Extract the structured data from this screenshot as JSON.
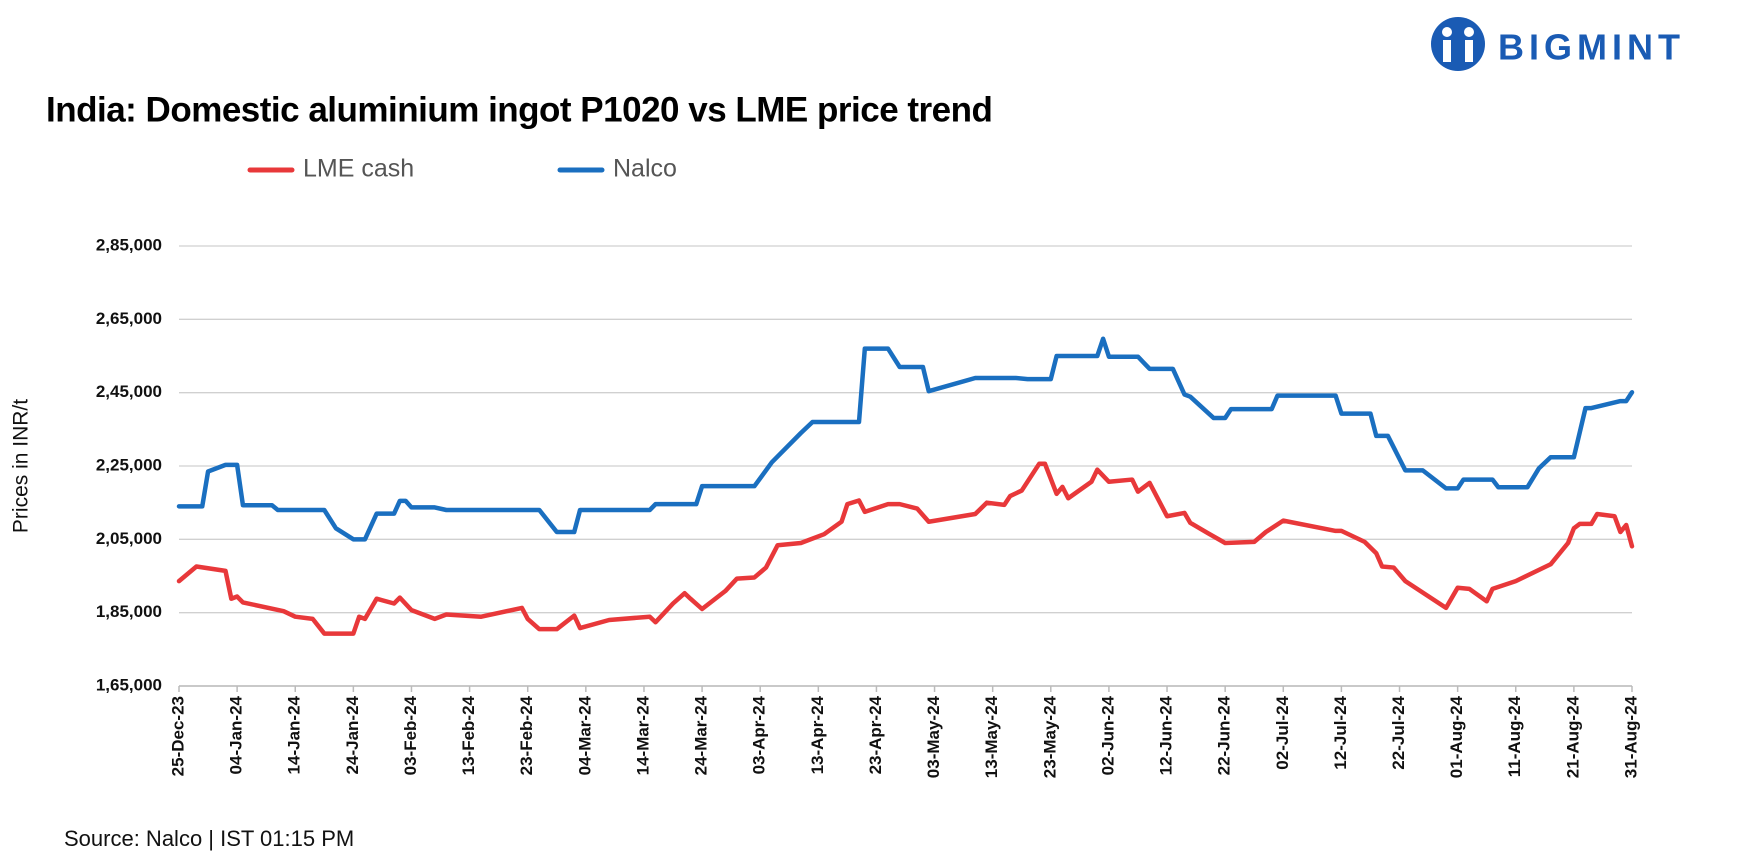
{
  "logo": "BIGMINT",
  "chart_data": {
    "type": "line",
    "title": "India: Domestic aluminium ingot P1020 vs LME price trend",
    "y_label": "Prices in INR/t",
    "source": "Source: Nalco | IST 01:15 PM",
    "xlim": [
      "2023-12-25",
      "2024-08-31"
    ],
    "xticks": [
      {
        "value": "2023-12-25",
        "label": "25-Dec-23"
      },
      {
        "value": "2024-01-04",
        "label": "04-Jan-24"
      },
      {
        "value": "2024-01-14",
        "label": "14-Jan-24"
      },
      {
        "value": "2024-01-24",
        "label": "24-Jan-24"
      },
      {
        "value": "2024-02-03",
        "label": "03-Feb-24"
      },
      {
        "value": "2024-02-13",
        "label": "13-Feb-24"
      },
      {
        "value": "2024-02-23",
        "label": "23-Feb-24"
      },
      {
        "value": "2024-03-04",
        "label": "04-Mar-24"
      },
      {
        "value": "2024-03-14",
        "label": "14-Mar-24"
      },
      {
        "value": "2024-03-24",
        "label": "24-Mar-24"
      },
      {
        "value": "2024-04-03",
        "label": "03-Apr-24"
      },
      {
        "value": "2024-04-13",
        "label": "13-Apr-24"
      },
      {
        "value": "2024-04-23",
        "label": "23-Apr-24"
      },
      {
        "value": "2024-05-03",
        "label": "03-May-24"
      },
      {
        "value": "2024-05-13",
        "label": "13-May-24"
      },
      {
        "value": "2024-05-23",
        "label": "23-May-24"
      },
      {
        "value": "2024-06-02",
        "label": "02-Jun-24"
      },
      {
        "value": "2024-06-12",
        "label": "12-Jun-24"
      },
      {
        "value": "2024-06-22",
        "label": "22-Jun-24"
      },
      {
        "value": "2024-07-02",
        "label": "02-Jul-24"
      },
      {
        "value": "2024-07-12",
        "label": "12-Jul-24"
      },
      {
        "value": "2024-07-22",
        "label": "22-Jul-24"
      },
      {
        "value": "2024-08-01",
        "label": "01-Aug-24"
      },
      {
        "value": "2024-08-11",
        "label": "11-Aug-24"
      },
      {
        "value": "2024-08-21",
        "label": "21-Aug-24"
      },
      {
        "value": "2024-08-31",
        "label": "31-Aug-24"
      }
    ],
    "ylim": [
      165000,
      285000
    ],
    "yticks": [
      {
        "value": 165000,
        "label": "1,65,000"
      },
      {
        "value": 185000,
        "label": "1,85,000"
      },
      {
        "value": 205000,
        "label": "2,05,000"
      },
      {
        "value": 225000,
        "label": "2,25,000"
      },
      {
        "value": 245000,
        "label": "2,45,000"
      },
      {
        "value": 265000,
        "label": "2,65,000"
      },
      {
        "value": 285000,
        "label": "2,85,000"
      }
    ],
    "grid": true,
    "series": [
      {
        "name": "LME cash",
        "color": "#e8383a",
        "x": [
          "2023-12-25",
          "2023-12-28",
          "2024-01-02",
          "2024-01-03",
          "2024-01-04",
          "2024-01-05",
          "2024-01-12",
          "2024-01-14",
          "2024-01-17",
          "2024-01-19",
          "2024-01-24",
          "2024-01-25",
          "2024-01-26",
          "2024-01-28",
          "2024-01-31",
          "2024-02-01",
          "2024-02-03",
          "2024-02-07",
          "2024-02-09",
          "2024-02-15",
          "2024-02-22",
          "2024-02-23",
          "2024-02-25",
          "2024-02-28",
          "2024-03-02",
          "2024-03-03",
          "2024-03-08",
          "2024-03-15",
          "2024-03-16",
          "2024-03-19",
          "2024-03-21",
          "2024-03-22",
          "2024-03-24",
          "2024-03-28",
          "2024-03-30",
          "2024-04-02",
          "2024-04-04",
          "2024-04-06",
          "2024-04-10",
          "2024-04-14",
          "2024-04-17",
          "2024-04-18",
          "2024-04-20",
          "2024-04-21",
          "2024-04-25",
          "2024-04-27",
          "2024-04-30",
          "2024-05-02",
          "2024-05-10",
          "2024-05-12",
          "2024-05-15",
          "2024-05-16",
          "2024-05-18",
          "2024-05-21",
          "2024-05-22",
          "2024-05-24",
          "2024-05-25",
          "2024-05-26",
          "2024-05-30",
          "2024-05-31",
          "2024-06-02",
          "2024-06-06",
          "2024-06-07",
          "2024-06-09",
          "2024-06-12",
          "2024-06-15",
          "2024-06-16",
          "2024-06-19",
          "2024-06-22",
          "2024-06-27",
          "2024-06-29",
          "2024-07-02",
          "2024-07-11",
          "2024-07-12",
          "2024-07-16",
          "2024-07-18",
          "2024-07-19",
          "2024-07-21",
          "2024-07-23",
          "2024-07-30",
          "2024-08-01",
          "2024-08-03",
          "2024-08-06",
          "2024-08-07",
          "2024-08-11",
          "2024-08-17",
          "2024-08-20",
          "2024-08-21",
          "2024-08-22",
          "2024-08-24",
          "2024-08-25",
          "2024-08-28",
          "2024-08-29",
          "2024-08-30",
          "2024-08-31"
        ],
        "values": [
          193600,
          197600,
          196400,
          188800,
          189400,
          187800,
          185400,
          183900,
          183300,
          179300,
          179300,
          183900,
          183300,
          188800,
          187500,
          189100,
          185700,
          183300,
          184500,
          183900,
          186300,
          183300,
          180500,
          180500,
          184200,
          180800,
          183000,
          183900,
          182400,
          187500,
          190300,
          188800,
          186000,
          190900,
          194300,
          194600,
          197300,
          203400,
          204000,
          206400,
          209800,
          214600,
          215600,
          212500,
          214600,
          214600,
          213400,
          209800,
          211900,
          215000,
          214400,
          216800,
          218300,
          225600,
          225600,
          217400,
          219300,
          216200,
          220700,
          224000,
          220700,
          221300,
          218000,
          220400,
          211300,
          212200,
          209500,
          206700,
          204000,
          204300,
          207000,
          210100,
          207300,
          207300,
          204300,
          201200,
          197600,
          197300,
          193600,
          186300,
          191800,
          191500,
          188100,
          191500,
          193600,
          198200,
          204000,
          208000,
          209200,
          209200,
          211900,
          211300,
          207000,
          208900,
          203100
        ]
      },
      {
        "name": "Nalco",
        "color": "#1a6fc0",
        "x": [
          "2023-12-25",
          "2023-12-29",
          "2023-12-30",
          "2024-01-02",
          "2024-01-04",
          "2024-01-05",
          "2024-01-10",
          "2024-01-11",
          "2024-01-19",
          "2024-01-21",
          "2024-01-24",
          "2024-01-26",
          "2024-01-28",
          "2024-01-31",
          "2024-02-01",
          "2024-02-02",
          "2024-02-03",
          "2024-02-07",
          "2024-02-09",
          "2024-02-25",
          "2024-02-28",
          "2024-03-02",
          "2024-03-03",
          "2024-03-15",
          "2024-03-16",
          "2024-03-23",
          "2024-03-24",
          "2024-04-02",
          "2024-04-05",
          "2024-04-10",
          "2024-04-12",
          "2024-04-20",
          "2024-04-21",
          "2024-04-25",
          "2024-04-27",
          "2024-05-01",
          "2024-05-02",
          "2024-05-10",
          "2024-05-17",
          "2024-05-19",
          "2024-05-23",
          "2024-05-24",
          "2024-05-31",
          "2024-06-01",
          "2024-06-02",
          "2024-06-07",
          "2024-06-09",
          "2024-06-13",
          "2024-06-15",
          "2024-06-16",
          "2024-06-20",
          "2024-06-22",
          "2024-06-23",
          "2024-06-30",
          "2024-07-01",
          "2024-07-11",
          "2024-07-12",
          "2024-07-17",
          "2024-07-18",
          "2024-07-20",
          "2024-07-23",
          "2024-07-26",
          "2024-07-30",
          "2024-08-01",
          "2024-08-02",
          "2024-08-07",
          "2024-08-08",
          "2024-08-13",
          "2024-08-15",
          "2024-08-17",
          "2024-08-21",
          "2024-08-23",
          "2024-08-24",
          "2024-08-29",
          "2024-08-30",
          "2024-08-31"
        ],
        "values": [
          214000,
          214000,
          223500,
          225300,
          225300,
          214300,
          214300,
          213000,
          213000,
          208000,
          205000,
          205000,
          212000,
          212000,
          215500,
          215500,
          213700,
          213700,
          213000,
          213000,
          207000,
          207000,
          213000,
          213000,
          214600,
          214600,
          219500,
          219500,
          226000,
          234000,
          237000,
          237000,
          257000,
          257000,
          252000,
          252000,
          245400,
          249000,
          249000,
          248700,
          248700,
          255000,
          255000,
          259700,
          254800,
          254800,
          251500,
          251500,
          244500,
          243900,
          238100,
          238100,
          240500,
          240500,
          244200,
          244200,
          239300,
          239300,
          233200,
          233200,
          223800,
          223800,
          218900,
          218900,
          221300,
          221300,
          219200,
          219200,
          224400,
          227400,
          227400,
          240800,
          240800,
          242700,
          242700,
          245100
        ]
      }
    ]
  }
}
